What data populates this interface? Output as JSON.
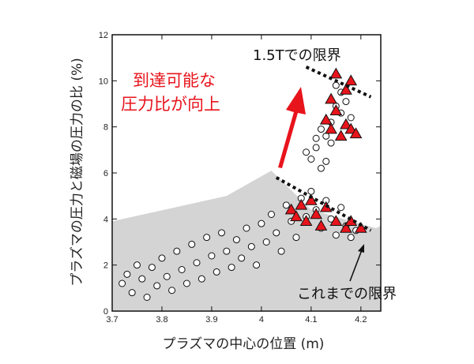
{
  "chart_data": {
    "type": "scatter",
    "title": "",
    "xlabel": "プラズマの中心の位置 (m)",
    "ylabel": "プラズマの圧力と磁場の圧力の比 (%)",
    "xlim": [
      3.7,
      4.24
    ],
    "ylim": [
      0,
      12
    ],
    "xticks": [
      "3.7",
      "3.8",
      "3.9",
      "4",
      "4.1",
      "4.2"
    ],
    "yticks": [
      "0",
      "2",
      "4",
      "6",
      "8",
      "10",
      "12"
    ],
    "grid": false,
    "legend": "none",
    "series": [
      {
        "marker": "open-circle",
        "color": "#ffffff",
        "points": [
          [
            3.72,
            1.2
          ],
          [
            3.73,
            1.6
          ],
          [
            3.74,
            0.8
          ],
          [
            3.75,
            2.0
          ],
          [
            3.76,
            1.4
          ],
          [
            3.77,
            0.6
          ],
          [
            3.78,
            1.9
          ],
          [
            3.79,
            1.1
          ],
          [
            3.8,
            2.3
          ],
          [
            3.81,
            1.5
          ],
          [
            3.82,
            0.9
          ],
          [
            3.83,
            2.6
          ],
          [
            3.84,
            1.8
          ],
          [
            3.85,
            1.2
          ],
          [
            3.86,
            2.9
          ],
          [
            3.87,
            2.1
          ],
          [
            3.88,
            1.4
          ],
          [
            3.89,
            3.2
          ],
          [
            3.9,
            2.4
          ],
          [
            3.91,
            1.7
          ],
          [
            3.92,
            3.4
          ],
          [
            3.93,
            2.6
          ],
          [
            3.94,
            1.9
          ],
          [
            3.95,
            3.1
          ],
          [
            3.96,
            2.3
          ],
          [
            3.97,
            3.6
          ],
          [
            3.98,
            2.8
          ],
          [
            3.99,
            2.0
          ],
          [
            4.0,
            3.8
          ],
          [
            4.01,
            3.0
          ],
          [
            4.02,
            4.2
          ],
          [
            4.03,
            3.4
          ],
          [
            4.04,
            2.6
          ],
          [
            4.05,
            4.6
          ],
          [
            4.06,
            3.9
          ],
          [
            4.07,
            3.2
          ],
          [
            4.08,
            4.9
          ],
          [
            4.09,
            4.1
          ],
          [
            4.1,
            5.2
          ],
          [
            4.11,
            4.4
          ],
          [
            4.12,
            3.6
          ],
          [
            4.13,
            4.8
          ],
          [
            4.14,
            4.0
          ],
          [
            4.15,
            3.3
          ],
          [
            4.16,
            4.5
          ],
          [
            4.17,
            3.7
          ],
          [
            4.18,
            3.2
          ],
          [
            4.19,
            3.5
          ],
          [
            4.1,
            6.6
          ],
          [
            4.11,
            7.1
          ],
          [
            4.12,
            6.2
          ],
          [
            4.13,
            7.6
          ],
          [
            4.14,
            8.2
          ],
          [
            4.15,
            8.9
          ],
          [
            4.16,
            9.5
          ],
          [
            4.17,
            9.1
          ],
          [
            4.09,
            6.9
          ],
          [
            4.12,
            7.9
          ],
          [
            4.14,
            7.3
          ],
          [
            4.16,
            8.6
          ],
          [
            4.18,
            8.4
          ],
          [
            4.15,
            9.8
          ],
          [
            4.11,
            7.5
          ],
          [
            4.13,
            6.5
          ]
        ]
      },
      {
        "marker": "red-triangle",
        "color": "#e8141c",
        "points": [
          [
            4.06,
            4.4
          ],
          [
            4.08,
            4.6
          ],
          [
            4.09,
            3.9
          ],
          [
            4.1,
            4.8
          ],
          [
            4.11,
            4.2
          ],
          [
            4.12,
            3.7
          ],
          [
            4.13,
            4.5
          ],
          [
            4.15,
            3.9
          ],
          [
            4.17,
            3.6
          ],
          [
            4.18,
            3.9
          ],
          [
            4.2,
            3.6
          ],
          [
            4.07,
            4.1
          ],
          [
            4.13,
            8.3
          ],
          [
            4.14,
            7.9
          ],
          [
            4.15,
            8.7
          ],
          [
            4.16,
            7.6
          ],
          [
            4.17,
            8.1
          ],
          [
            4.18,
            7.9
          ],
          [
            4.19,
            7.7
          ],
          [
            4.17,
            9.6
          ],
          [
            4.18,
            10.0
          ],
          [
            4.15,
            10.3
          ],
          [
            4.14,
            9.2
          ]
        ]
      }
    ],
    "shaded_region": {
      "color": "#d4d4d4",
      "x": [
        3.7,
        3.93,
        4.02,
        4.1,
        4.23,
        4.24
      ],
      "y": [
        3.9,
        5.0,
        6.1,
        4.4,
        3.6,
        3.7
      ]
    },
    "limit_lines": [
      {
        "label": "1.5Tでの限界",
        "x": [
          4.09,
          4.22
        ],
        "y": [
          10.6,
          9.3
        ]
      },
      {
        "label": "これまでの限界",
        "x": [
          4.03,
          4.22
        ],
        "y": [
          5.8,
          3.5
        ]
      }
    ]
  },
  "annotations": {
    "red_text_line1": "到達可能な",
    "red_text_line2": "圧力比が向上",
    "limit_15T": "1.5Tでの限界",
    "limit_previous": "これまでの限界"
  }
}
